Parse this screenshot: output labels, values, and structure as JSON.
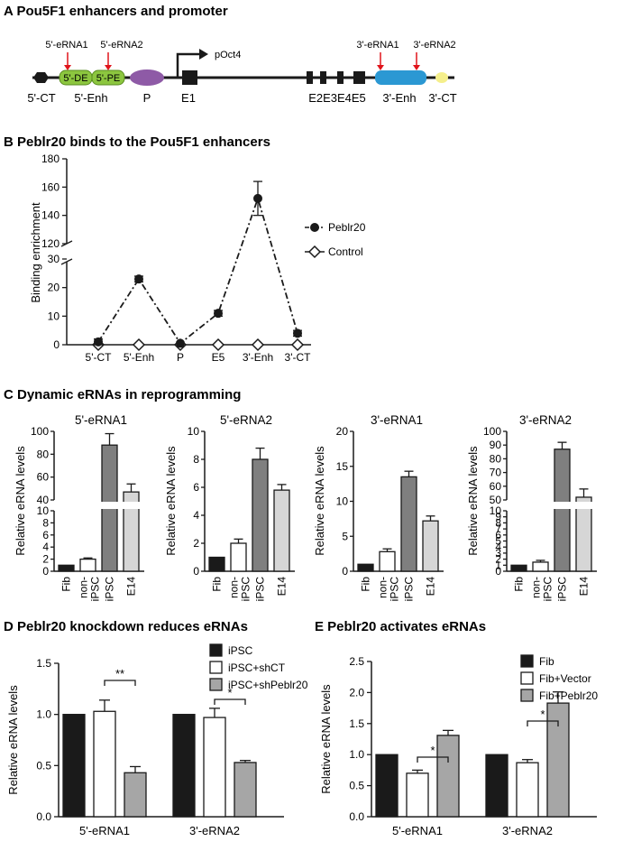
{
  "colors": {
    "black": "#1a1a1a",
    "dark_gray": "#7f7f7f",
    "light_gray": "#d6d6d6",
    "mid_gray": "#a6a6a6",
    "green": "#8cc63f",
    "purple": "#8e5aa6",
    "blue": "#2b98d3",
    "yellow": "#f5ef8c",
    "red_arrow": "#e0141b"
  },
  "panel_a": {
    "title": "A  Pou5F1 enhancers and promoter",
    "element_labels": [
      "5'-CT",
      "5'-Enh",
      "P",
      "E1",
      "E2E3E4E5",
      "3'-Enh",
      "3'-CT"
    ],
    "box_labels": [
      "5'-DE",
      "5'-PE"
    ],
    "erna_labels": [
      "5'-eRNA1",
      "5'-eRNA2",
      "3'-eRNA1",
      "3'-eRNA2"
    ],
    "promoter_label": "pOct4"
  },
  "panel_b": {
    "title": "B  Peblr20 binds to the Pou5F1 enhancers"
  },
  "panel_c": {
    "title": "C  Dynamic eRNAs in reprogramming"
  },
  "panel_d": {
    "title": "D  Peblr20 knockdown reduces eRNAs"
  },
  "panel_e": {
    "title": "E  Peblr20 activates eRNAs"
  },
  "chart_data": [
    {
      "id": "B",
      "type": "line",
      "categories": [
        "5'-CT",
        "5'-Enh",
        "P",
        "E5",
        "3'-Enh",
        "3'-CT"
      ],
      "ylabel": "Binding enrichment",
      "broken_axis": {
        "lower": [
          0,
          30
        ],
        "upper": [
          120,
          180
        ]
      },
      "yticks_lower": [
        0,
        10,
        20,
        30
      ],
      "yticks_upper": [
        120,
        140,
        160,
        180
      ],
      "series": [
        {
          "name": "Peblr20",
          "values": [
            1,
            23,
            0.5,
            11,
            152,
            4
          ],
          "errors": [
            1,
            1,
            0.5,
            1,
            12,
            1
          ]
        },
        {
          "name": "Control",
          "values": [
            0,
            0,
            0,
            0,
            0,
            0
          ],
          "errors": [
            0,
            0,
            0,
            0,
            0,
            0
          ]
        }
      ]
    },
    {
      "id": "C1",
      "type": "bar",
      "title": "5'-eRNA1",
      "ylabel": "Relative eRNA levels",
      "categories": [
        "Fib",
        "non-iPSC",
        "iPSC",
        "E14"
      ],
      "values": [
        1,
        2,
        88,
        47
      ],
      "errors": [
        0,
        0.2,
        10,
        7
      ],
      "broken_axis": {
        "lower": [
          0,
          10
        ],
        "upper": [
          40,
          100
        ]
      },
      "yticks_lower": [
        0,
        2,
        4,
        6,
        8,
        10
      ],
      "yticks_upper": [
        40,
        60,
        80,
        100
      ]
    },
    {
      "id": "C2",
      "type": "bar",
      "title": "5'-eRNA2",
      "ylabel": "Relative eRNA levels",
      "categories": [
        "Fib",
        "non-iPSC",
        "iPSC",
        "E14"
      ],
      "values": [
        1,
        2,
        8,
        5.8
      ],
      "errors": [
        0,
        0.3,
        0.8,
        0.4
      ],
      "ylim": [
        0,
        10
      ],
      "yticks": [
        0,
        2,
        4,
        6,
        8,
        10
      ]
    },
    {
      "id": "C3",
      "type": "bar",
      "title": "3'-eRNA1",
      "ylabel": "Relative eRNA levels",
      "categories": [
        "Fib",
        "non-iPSC",
        "iPSC",
        "E14"
      ],
      "values": [
        1,
        2.8,
        13.5,
        7.2
      ],
      "errors": [
        0,
        0.4,
        0.8,
        0.7
      ],
      "ylim": [
        0,
        20
      ],
      "yticks": [
        0,
        5,
        10,
        15,
        20
      ]
    },
    {
      "id": "C4",
      "type": "bar",
      "title": "3'-eRNA2",
      "ylabel": "Relative eRNA levels",
      "categories": [
        "Fib",
        "non-iPSC",
        "iPSC",
        "E14"
      ],
      "values": [
        1,
        1.5,
        87,
        52
      ],
      "errors": [
        0,
        0.3,
        5,
        6
      ],
      "broken_axis": {
        "lower": [
          0,
          10
        ],
        "upper": [
          50,
          100
        ]
      },
      "yticks_lower": [
        0,
        1,
        2,
        3,
        4,
        5,
        6,
        7,
        8,
        9,
        10
      ],
      "yticks_upper": [
        50,
        60,
        70,
        80,
        90,
        100
      ]
    },
    {
      "id": "D",
      "type": "bar",
      "ylabel": "Relative eRNA levels",
      "categories": [
        "5'-eRNA1",
        "3'-eRNA2"
      ],
      "ylim": [
        0,
        1.5
      ],
      "yticks": [
        "0.0",
        "0.5",
        "1.0",
        "1.5"
      ],
      "series": [
        {
          "name": "iPSC",
          "values": [
            1.0,
            1.0
          ],
          "errors": [
            0,
            0
          ]
        },
        {
          "name": "iPSC+shCT",
          "values": [
            1.03,
            0.97
          ],
          "errors": [
            0.11,
            0.09
          ]
        },
        {
          "name": "iPSC+shPeblr20",
          "values": [
            0.43,
            0.53
          ],
          "errors": [
            0.06,
            0.02
          ]
        }
      ],
      "significance": [
        "**",
        "*"
      ]
    },
    {
      "id": "E",
      "type": "bar",
      "ylabel": "Relative eRNA levels",
      "categories": [
        "5'-eRNA1",
        "3'-eRNA2"
      ],
      "ylim": [
        0,
        2.5
      ],
      "yticks": [
        "0.0",
        "0.5",
        "1.0",
        "1.5",
        "2.0",
        "2.5"
      ],
      "series": [
        {
          "name": "Fib",
          "values": [
            1.0,
            1.0
          ],
          "errors": [
            0,
            0
          ]
        },
        {
          "name": "Fib+Vector",
          "values": [
            0.7,
            0.87
          ],
          "errors": [
            0.05,
            0.05
          ]
        },
        {
          "name": "Fib+Peblr20",
          "values": [
            1.31,
            1.83
          ],
          "errors": [
            0.08,
            0.18
          ]
        }
      ],
      "significance": [
        "*",
        "*"
      ]
    }
  ]
}
